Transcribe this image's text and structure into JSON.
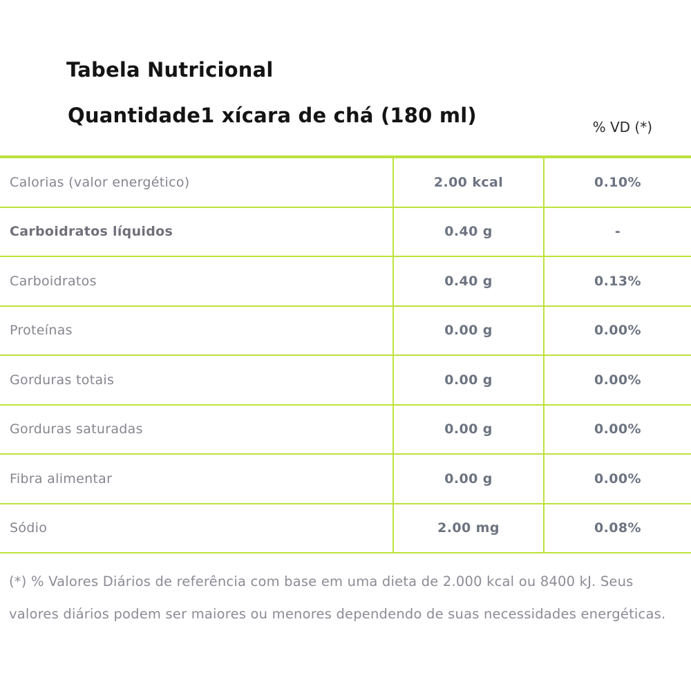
{
  "header": {
    "title": "Tabela Nutricional",
    "subtitle": "Quantidade1 xícara de chá (180 ml)",
    "vd_header": "% VD (*)"
  },
  "table": {
    "rows": [
      {
        "label": "Calorias (valor energético)",
        "value": "2.00 kcal",
        "vd": "0.10%",
        "bold": false
      },
      {
        "label": "Carboidratos líquidos",
        "value": "0.40 g",
        "vd": "-",
        "bold": true
      },
      {
        "label": "Carboidratos",
        "value": "0.40 g",
        "vd": "0.13%",
        "bold": false
      },
      {
        "label": "Proteínas",
        "value": "0.00 g",
        "vd": "0.00%",
        "bold": false
      },
      {
        "label": "Gorduras totais",
        "value": "0.00 g",
        "vd": "0.00%",
        "bold": false
      },
      {
        "label": "Gorduras saturadas",
        "value": "0.00 g",
        "vd": "0.00%",
        "bold": false
      },
      {
        "label": "Fibra alimentar",
        "value": "0.00 g",
        "vd": "0.00%",
        "bold": false
      },
      {
        "label": "Sódio",
        "value": "2.00 mg",
        "vd": "0.08%",
        "bold": false
      }
    ]
  },
  "footnote": {
    "text": "(*) % Valores Diários de referência com base em uma dieta de 2.000 kcal ou 8400 kJ. Seus valores diários podem ser maiores ou menores dependendo de suas necessidades energéticas."
  },
  "colors": {
    "accent_green": "#bce23c",
    "label_gray": "#85858f",
    "value_gray": "#6c7380",
    "title_black": "#141414"
  }
}
